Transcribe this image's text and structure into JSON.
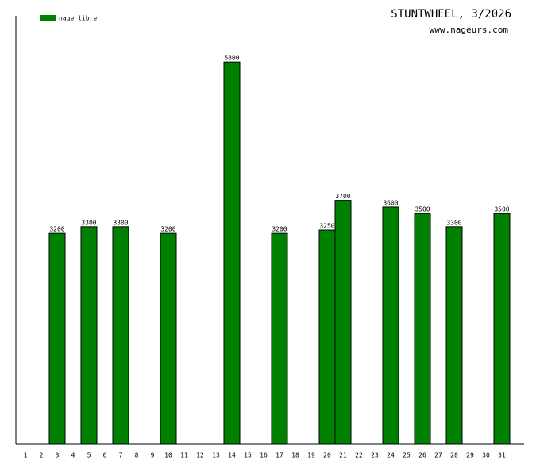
{
  "chart_data": {
    "type": "bar",
    "title": "STUNTWHEEL, 3/2026",
    "subtitle": "www.nageurs.com",
    "categories": [
      "1",
      "2",
      "3",
      "4",
      "5",
      "6",
      "7",
      "8",
      "9",
      "10",
      "11",
      "12",
      "13",
      "14",
      "15",
      "16",
      "17",
      "18",
      "19",
      "20",
      "21",
      "22",
      "23",
      "24",
      "25",
      "26",
      "27",
      "28",
      "29",
      "30",
      "31"
    ],
    "series": [
      {
        "name": "nage libre",
        "color": "#008000",
        "values": [
          null,
          null,
          3200,
          null,
          3300,
          null,
          3300,
          null,
          null,
          3200,
          null,
          null,
          null,
          5800,
          null,
          null,
          3200,
          null,
          null,
          3250,
          3700,
          null,
          null,
          3600,
          null,
          3500,
          null,
          3300,
          null,
          null,
          3500
        ]
      }
    ],
    "ylim": [
      0,
      6500
    ]
  }
}
